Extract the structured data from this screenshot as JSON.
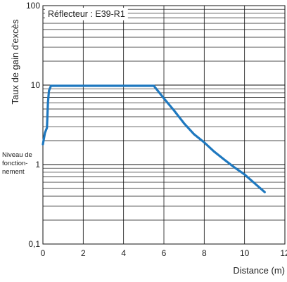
{
  "chart_data": {
    "type": "line",
    "title": "",
    "xlabel": "Distance (m)",
    "ylabel": "Taux de gain d'excès",
    "xlim": [
      0,
      12
    ],
    "ylim": [
      0.1,
      100
    ],
    "yscale": "log",
    "grid": true,
    "x_ticks": [
      "0",
      "2",
      "4",
      "6",
      "8",
      "10",
      "12"
    ],
    "y_ticks": [
      "0,1",
      "1",
      "10",
      "100"
    ],
    "legend": "top-left",
    "annotations": {
      "operating_level": [
        "Niveau de",
        "fonction-",
        "nement"
      ]
    },
    "series": [
      {
        "name": "Réflecteur : E39-R1",
        "color": "#1e78bf",
        "x": [
          0,
          0.1,
          0.15,
          0.2,
          0.25,
          0.3,
          0.4,
          5.5,
          6.0,
          6.5,
          7.0,
          7.5,
          8.0,
          8.5,
          9.0,
          9.5,
          10.0,
          10.5,
          11.0
        ],
        "y": [
          1.8,
          2.5,
          2.7,
          2.9,
          6.0,
          8.5,
          9.8,
          9.8,
          6.8,
          4.8,
          3.3,
          2.4,
          1.9,
          1.45,
          1.15,
          0.92,
          0.75,
          0.58,
          0.45
        ]
      }
    ]
  }
}
